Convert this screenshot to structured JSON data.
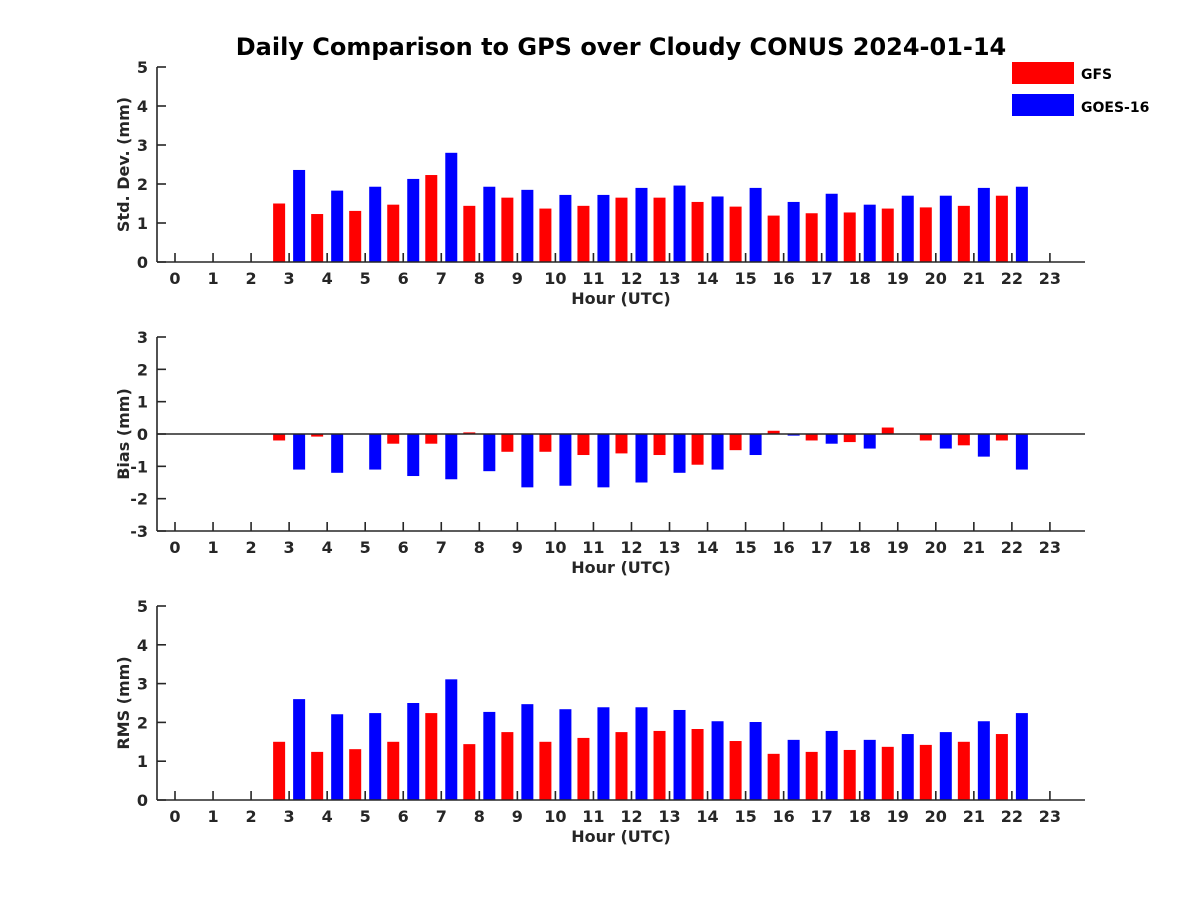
{
  "chart_data": {
    "type": "bar",
    "title": "Daily Comparison to GPS over Cloudy CONUS 2024-01-14",
    "colors": {
      "GFS": "#ff0000",
      "GOES-16": "#0000ff"
    },
    "legend": {
      "position": "top-right",
      "entries": [
        {
          "name": "GFS",
          "color": "#ff0000"
        },
        {
          "name": "GOES-16",
          "color": "#0000ff"
        }
      ]
    },
    "categories": [
      "0",
      "1",
      "2",
      "3",
      "4",
      "5",
      "6",
      "7",
      "8",
      "9",
      "10",
      "11",
      "12",
      "13",
      "14",
      "15",
      "16",
      "17",
      "18",
      "19",
      "20",
      "21",
      "22",
      "23"
    ],
    "panels": [
      {
        "id": "std",
        "xlabel": "Hour (UTC)",
        "ylabel": "Std. Dev. (mm)",
        "ylim": [
          0,
          5
        ],
        "yticks": [
          0,
          1,
          2,
          3,
          4,
          5
        ],
        "zero_line": false,
        "series": [
          {
            "name": "GFS",
            "values": [
              null,
              null,
              null,
              1.5,
              1.23,
              1.31,
              1.47,
              2.23,
              1.44,
              1.65,
              1.37,
              1.44,
              1.65,
              1.65,
              1.54,
              1.42,
              1.19,
              1.25,
              1.27,
              1.37,
              1.4,
              1.44,
              1.7,
              null
            ]
          },
          {
            "name": "GOES-16",
            "values": [
              null,
              null,
              null,
              2.36,
              1.83,
              1.93,
              2.13,
              2.8,
              1.93,
              1.85,
              1.72,
              1.72,
              1.9,
              1.96,
              1.68,
              1.9,
              1.54,
              1.75,
              1.47,
              1.7,
              1.7,
              1.9,
              1.93,
              null
            ]
          }
        ]
      },
      {
        "id": "bias",
        "xlabel": "Hour (UTC)",
        "ylabel": "Bias (mm)",
        "ylim": [
          -3,
          3
        ],
        "yticks": [
          -3,
          -2,
          -1,
          0,
          1,
          2,
          3
        ],
        "zero_line": true,
        "series": [
          {
            "name": "GFS",
            "values": [
              null,
              null,
              null,
              -0.2,
              -0.08,
              null,
              -0.3,
              -0.3,
              0.05,
              -0.55,
              -0.55,
              -0.65,
              -0.6,
              -0.65,
              -0.95,
              -0.5,
              0.1,
              -0.2,
              -0.25,
              0.2,
              -0.2,
              -0.35,
              -0.2,
              null
            ]
          },
          {
            "name": "GOES-16",
            "values": [
              null,
              null,
              null,
              -1.1,
              -1.2,
              -1.1,
              -1.3,
              -1.4,
              -1.15,
              -1.65,
              -1.6,
              -1.65,
              -1.5,
              -1.2,
              -1.1,
              -0.65,
              -0.05,
              -0.3,
              -0.45,
              null,
              -0.45,
              -0.7,
              -1.1,
              null
            ]
          }
        ]
      },
      {
        "id": "rms",
        "xlabel": "Hour (UTC)",
        "ylabel": "RMS (mm)",
        "ylim": [
          0,
          5
        ],
        "yticks": [
          0,
          1,
          2,
          3,
          4,
          5
        ],
        "zero_line": false,
        "series": [
          {
            "name": "GFS",
            "values": [
              null,
              null,
              null,
              1.5,
              1.24,
              1.31,
              1.5,
              2.24,
              1.44,
              1.75,
              1.5,
              1.6,
              1.75,
              1.78,
              1.83,
              1.52,
              1.19,
              1.24,
              1.29,
              1.37,
              1.42,
              1.5,
              1.7,
              null
            ]
          },
          {
            "name": "GOES-16",
            "values": [
              null,
              null,
              null,
              2.6,
              2.21,
              2.24,
              2.5,
              3.11,
              2.27,
              2.47,
              2.34,
              2.39,
              2.39,
              2.32,
              2.03,
              2.01,
              1.55,
              1.78,
              1.55,
              1.7,
              1.75,
              2.03,
              2.24,
              null
            ]
          }
        ]
      }
    ]
  }
}
